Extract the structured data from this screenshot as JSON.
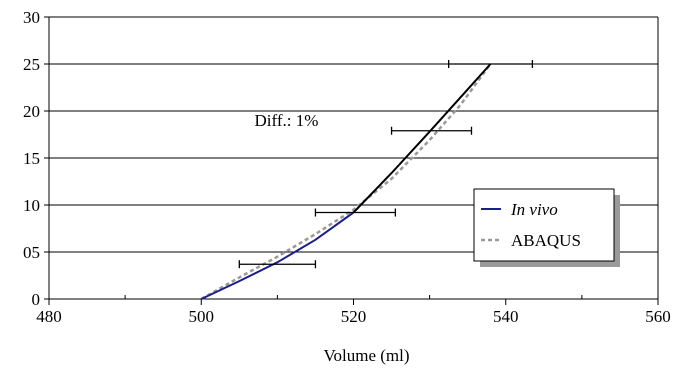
{
  "chart_data": {
    "type": "line",
    "title": "",
    "xlabel": "Volume (ml)",
    "ylabel": "",
    "xlim": [
      480,
      560
    ],
    "ylim": [
      0,
      30
    ],
    "x_ticks": [
      480,
      500,
      520,
      540,
      560
    ],
    "y_ticks": [
      0,
      5,
      10,
      15,
      20,
      25,
      30
    ],
    "x_tick_labels": [
      "480",
      "500",
      "520",
      "540",
      "560"
    ],
    "y_tick_labels": [
      "0",
      "05",
      "10",
      "15",
      "20",
      "25",
      "30"
    ],
    "grid": "horizontal",
    "legend_position": "right",
    "series": [
      {
        "name": "In vivo",
        "style": "solid",
        "segments": [
          {
            "color": "#1a1f8a",
            "points": [
              [
                500,
                0
              ],
              [
                505,
                1.9
              ],
              [
                510,
                3.9
              ],
              [
                515,
                6.3
              ],
              [
                520,
                9.2
              ]
            ]
          },
          {
            "color": "#000000",
            "points": [
              [
                520,
                9.2
              ],
              [
                525,
                13.4
              ],
              [
                530,
                17.8
              ],
              [
                534,
                21.4
              ],
              [
                538,
                25
              ]
            ]
          }
        ]
      },
      {
        "name": "ABAQUS",
        "style": "dashed",
        "color": "#999999",
        "points": [
          [
            500,
            0
          ],
          [
            505,
            2.3
          ],
          [
            510,
            4.5
          ],
          [
            515,
            6.9
          ],
          [
            520,
            9.5
          ],
          [
            525,
            12.8
          ],
          [
            530,
            16.9
          ],
          [
            534,
            20.6
          ],
          [
            538,
            25
          ]
        ]
      }
    ],
    "error_bars": [
      {
        "y": 3.7,
        "x_low": 505,
        "x_high": 515
      },
      {
        "y": 9.2,
        "x_low": 515,
        "x_high": 525.5
      },
      {
        "y": 17.9,
        "x_low": 525,
        "x_high": 535.5
      },
      {
        "y": 25,
        "x_low": 532.5,
        "x_high": 543.5
      }
    ],
    "annotations": [
      {
        "text": "Diff.: 1%",
        "x": 507,
        "y": 18.4
      }
    ],
    "colors": {
      "in_vivo_lower": "#1a1f8a",
      "in_vivo_upper": "#000000",
      "abaqus": "#999999",
      "grid": "#000000"
    }
  }
}
